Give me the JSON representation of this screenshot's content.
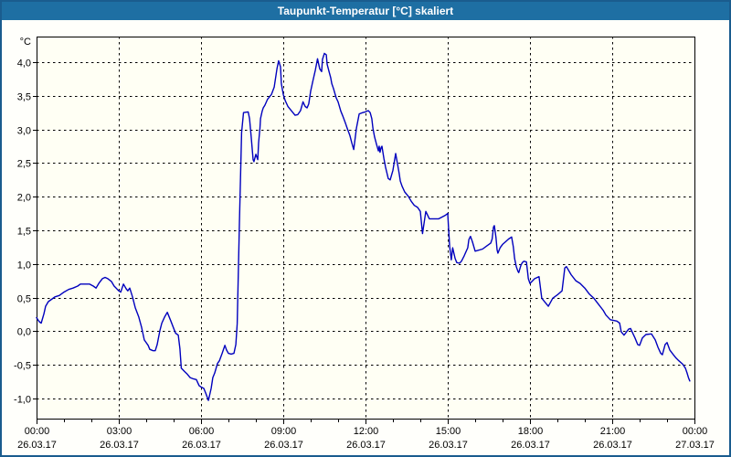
{
  "window": {
    "title": "Taupunkt-Temperatur [°C] skaliert",
    "colors": {
      "title_bar": "#1E6FA3",
      "title_text": "#FFFFFF",
      "border": "#1A5C8E",
      "client_bg": "#FFFFFB",
      "plot_bg": "#FFFFF4",
      "grid": "#000000",
      "axis_text": "#000000",
      "line": "#0000BE"
    }
  },
  "chart_data": {
    "type": "line",
    "title": "Taupunkt-Temperatur [°C] skaliert",
    "ylabel": "°C",
    "legend": "none",
    "grid": "dashed",
    "x_axis": {
      "range_hours": [
        0,
        24
      ],
      "minor_tick_hours": 1,
      "major_tick_hours": 3,
      "ticks": [
        {
          "hour": 0,
          "time": "00:00",
          "date": "26.03.17"
        },
        {
          "hour": 3,
          "time": "03:00",
          "date": "26.03.17"
        },
        {
          "hour": 6,
          "time": "06:00",
          "date": "26.03.17"
        },
        {
          "hour": 9,
          "time": "09:00",
          "date": "26.03.17"
        },
        {
          "hour": 12,
          "time": "12:00",
          "date": "26.03.17"
        },
        {
          "hour": 15,
          "time": "15:00",
          "date": "26.03.17"
        },
        {
          "hour": 18,
          "time": "18:00",
          "date": "26.03.17"
        },
        {
          "hour": 21,
          "time": "21:00",
          "date": "26.03.17"
        },
        {
          "hour": 24,
          "time": "00:00",
          "date": "27.03.17"
        }
      ]
    },
    "y_axis": {
      "range": [
        -1.3,
        4.38
      ],
      "unit": "°C",
      "ticks": [
        {
          "value": 4.0,
          "label": "4,0"
        },
        {
          "value": 3.5,
          "label": "3,5"
        },
        {
          "value": 3.0,
          "label": "3,0"
        },
        {
          "value": 2.5,
          "label": "2,5"
        },
        {
          "value": 2.0,
          "label": "2,0"
        },
        {
          "value": 1.5,
          "label": "1,5"
        },
        {
          "value": 1.0,
          "label": "1,0"
        },
        {
          "value": 0.5,
          "label": "0,5"
        },
        {
          "value": 0.0,
          "label": "0,0"
        },
        {
          "value": -0.5,
          "label": "-0,5"
        },
        {
          "value": -1.0,
          "label": "-1,0"
        }
      ]
    },
    "series": [
      {
        "name": "Taupunkt-Temperatur",
        "color": "#0000BE",
        "points": [
          [
            0.0,
            0.2
          ],
          [
            0.1,
            0.14
          ],
          [
            0.17,
            0.12
          ],
          [
            0.27,
            0.26
          ],
          [
            0.33,
            0.37
          ],
          [
            0.43,
            0.44
          ],
          [
            0.57,
            0.48
          ],
          [
            0.67,
            0.51
          ],
          [
            0.83,
            0.53
          ],
          [
            1.0,
            0.58
          ],
          [
            1.17,
            0.62
          ],
          [
            1.33,
            0.64
          ],
          [
            1.5,
            0.67
          ],
          [
            1.6,
            0.7
          ],
          [
            1.93,
            0.7
          ],
          [
            2.07,
            0.67
          ],
          [
            2.17,
            0.64
          ],
          [
            2.27,
            0.71
          ],
          [
            2.4,
            0.78
          ],
          [
            2.5,
            0.8
          ],
          [
            2.6,
            0.78
          ],
          [
            2.73,
            0.74
          ],
          [
            2.83,
            0.67
          ],
          [
            3.0,
            0.6
          ],
          [
            3.07,
            0.58
          ],
          [
            3.17,
            0.7
          ],
          [
            3.27,
            0.63
          ],
          [
            3.33,
            0.6
          ],
          [
            3.4,
            0.64
          ],
          [
            3.5,
            0.51
          ],
          [
            3.6,
            0.35
          ],
          [
            3.73,
            0.21
          ],
          [
            3.83,
            0.06
          ],
          [
            3.93,
            -0.13
          ],
          [
            4.07,
            -0.21
          ],
          [
            4.13,
            -0.27
          ],
          [
            4.25,
            -0.29
          ],
          [
            4.33,
            -0.29
          ],
          [
            4.4,
            -0.2
          ],
          [
            4.5,
            0.01
          ],
          [
            4.57,
            0.12
          ],
          [
            4.67,
            0.21
          ],
          [
            4.77,
            0.28
          ],
          [
            4.9,
            0.15
          ],
          [
            5.07,
            -0.03
          ],
          [
            5.17,
            -0.06
          ],
          [
            5.23,
            -0.26
          ],
          [
            5.28,
            -0.55
          ],
          [
            5.4,
            -0.6
          ],
          [
            5.5,
            -0.64
          ],
          [
            5.6,
            -0.69
          ],
          [
            5.73,
            -0.71
          ],
          [
            5.83,
            -0.72
          ],
          [
            5.93,
            -0.81
          ],
          [
            6.0,
            -0.83
          ],
          [
            6.1,
            -0.85
          ],
          [
            6.17,
            -0.92
          ],
          [
            6.27,
            -1.03
          ],
          [
            6.37,
            -0.85
          ],
          [
            6.43,
            -0.69
          ],
          [
            6.5,
            -0.62
          ],
          [
            6.6,
            -0.48
          ],
          [
            6.67,
            -0.44
          ],
          [
            6.77,
            -0.33
          ],
          [
            6.87,
            -0.21
          ],
          [
            6.93,
            -0.28
          ],
          [
            7.0,
            -0.33
          ],
          [
            7.1,
            -0.34
          ],
          [
            7.2,
            -0.33
          ],
          [
            7.27,
            -0.2
          ],
          [
            7.32,
            0.11
          ],
          [
            7.4,
            1.6
          ],
          [
            7.48,
            2.95
          ],
          [
            7.55,
            3.25
          ],
          [
            7.72,
            3.26
          ],
          [
            7.77,
            3.16
          ],
          [
            7.83,
            2.89
          ],
          [
            7.9,
            2.55
          ],
          [
            7.93,
            2.52
          ],
          [
            8.0,
            2.63
          ],
          [
            8.07,
            2.55
          ],
          [
            8.1,
            2.8
          ],
          [
            8.15,
            3.02
          ],
          [
            8.17,
            3.16
          ],
          [
            8.23,
            3.27
          ],
          [
            8.27,
            3.32
          ],
          [
            8.33,
            3.36
          ],
          [
            8.43,
            3.45
          ],
          [
            8.57,
            3.52
          ],
          [
            8.67,
            3.63
          ],
          [
            8.77,
            3.9
          ],
          [
            8.83,
            4.02
          ],
          [
            8.9,
            3.93
          ],
          [
            8.93,
            3.68
          ],
          [
            9.0,
            3.52
          ],
          [
            9.07,
            3.43
          ],
          [
            9.17,
            3.34
          ],
          [
            9.27,
            3.29
          ],
          [
            9.43,
            3.21
          ],
          [
            9.53,
            3.22
          ],
          [
            9.63,
            3.28
          ],
          [
            9.72,
            3.41
          ],
          [
            9.8,
            3.34
          ],
          [
            9.87,
            3.32
          ],
          [
            9.93,
            3.38
          ],
          [
            10.0,
            3.57
          ],
          [
            10.08,
            3.72
          ],
          [
            10.17,
            3.88
          ],
          [
            10.25,
            4.05
          ],
          [
            10.33,
            3.9
          ],
          [
            10.4,
            3.86
          ],
          [
            10.43,
            4.04
          ],
          [
            10.5,
            4.13
          ],
          [
            10.57,
            4.11
          ],
          [
            10.6,
            3.97
          ],
          [
            10.67,
            3.86
          ],
          [
            10.73,
            3.77
          ],
          [
            10.77,
            3.68
          ],
          [
            10.83,
            3.61
          ],
          [
            10.93,
            3.47
          ],
          [
            11.0,
            3.41
          ],
          [
            11.1,
            3.27
          ],
          [
            11.17,
            3.2
          ],
          [
            11.27,
            3.09
          ],
          [
            11.33,
            3.02
          ],
          [
            11.43,
            2.91
          ],
          [
            11.5,
            2.8
          ],
          [
            11.57,
            2.7
          ],
          [
            11.67,
            3.02
          ],
          [
            11.77,
            3.23
          ],
          [
            11.9,
            3.25
          ],
          [
            12.0,
            3.26
          ],
          [
            12.1,
            3.28
          ],
          [
            12.17,
            3.25
          ],
          [
            12.23,
            3.16
          ],
          [
            12.27,
            3.02
          ],
          [
            12.33,
            2.89
          ],
          [
            12.4,
            2.78
          ],
          [
            12.47,
            2.68
          ],
          [
            12.5,
            2.75
          ],
          [
            12.53,
            2.66
          ],
          [
            12.57,
            2.73
          ],
          [
            12.6,
            2.75
          ],
          [
            12.67,
            2.57
          ],
          [
            12.73,
            2.44
          ],
          [
            12.83,
            2.27
          ],
          [
            12.9,
            2.25
          ],
          [
            13.0,
            2.39
          ],
          [
            13.1,
            2.64
          ],
          [
            13.17,
            2.48
          ],
          [
            13.23,
            2.34
          ],
          [
            13.27,
            2.23
          ],
          [
            13.33,
            2.16
          ],
          [
            13.43,
            2.07
          ],
          [
            13.57,
            2.0
          ],
          [
            13.67,
            1.93
          ],
          [
            13.78,
            1.87
          ],
          [
            13.9,
            1.84
          ],
          [
            14.0,
            1.78
          ],
          [
            14.08,
            1.45
          ],
          [
            14.2,
            1.78
          ],
          [
            14.33,
            1.67
          ],
          [
            14.67,
            1.67
          ],
          [
            14.9,
            1.72
          ],
          [
            15.0,
            1.75
          ],
          [
            15.03,
            1.53
          ],
          [
            15.07,
            1.26
          ],
          [
            15.13,
            1.06
          ],
          [
            15.18,
            1.24
          ],
          [
            15.27,
            1.08
          ],
          [
            15.33,
            1.02
          ],
          [
            15.43,
            1.01
          ],
          [
            15.5,
            1.04
          ],
          [
            15.6,
            1.12
          ],
          [
            15.73,
            1.24
          ],
          [
            15.77,
            1.36
          ],
          [
            15.83,
            1.41
          ],
          [
            15.9,
            1.33
          ],
          [
            16.0,
            1.19
          ],
          [
            16.27,
            1.22
          ],
          [
            16.43,
            1.27
          ],
          [
            16.57,
            1.31
          ],
          [
            16.62,
            1.37
          ],
          [
            16.67,
            1.55
          ],
          [
            16.7,
            1.57
          ],
          [
            16.76,
            1.39
          ],
          [
            16.8,
            1.21
          ],
          [
            16.83,
            1.16
          ],
          [
            16.91,
            1.24
          ],
          [
            17.0,
            1.29
          ],
          [
            17.11,
            1.33
          ],
          [
            17.22,
            1.37
          ],
          [
            17.33,
            1.4
          ],
          [
            17.39,
            1.26
          ],
          [
            17.44,
            1.08
          ],
          [
            17.5,
            0.96
          ],
          [
            17.56,
            0.89
          ],
          [
            17.59,
            0.87
          ],
          [
            17.67,
            0.98
          ],
          [
            17.72,
            1.02
          ],
          [
            17.78,
            1.04
          ],
          [
            17.87,
            1.03
          ],
          [
            17.91,
            0.89
          ],
          [
            17.94,
            0.78
          ],
          [
            18.0,
            0.71
          ],
          [
            18.17,
            0.78
          ],
          [
            18.27,
            0.8
          ],
          [
            18.33,
            0.81
          ],
          [
            18.43,
            0.49
          ],
          [
            18.57,
            0.42
          ],
          [
            18.67,
            0.37
          ],
          [
            18.83,
            0.49
          ],
          [
            19.0,
            0.54
          ],
          [
            19.17,
            0.6
          ],
          [
            19.27,
            0.94
          ],
          [
            19.33,
            0.96
          ],
          [
            19.5,
            0.84
          ],
          [
            19.67,
            0.75
          ],
          [
            19.83,
            0.71
          ],
          [
            20.0,
            0.64
          ],
          [
            20.17,
            0.55
          ],
          [
            20.33,
            0.49
          ],
          [
            20.5,
            0.4
          ],
          [
            20.67,
            0.31
          ],
          [
            20.77,
            0.24
          ],
          [
            20.93,
            0.17
          ],
          [
            21.17,
            0.15
          ],
          [
            21.27,
            0.12
          ],
          [
            21.33,
            -0.01
          ],
          [
            21.43,
            -0.06
          ],
          [
            21.6,
            0.03
          ],
          [
            21.67,
            0.04
          ],
          [
            21.83,
            -0.1
          ],
          [
            21.93,
            -0.2
          ],
          [
            22.0,
            -0.21
          ],
          [
            22.1,
            -0.1
          ],
          [
            22.23,
            -0.05
          ],
          [
            22.43,
            -0.04
          ],
          [
            22.57,
            -0.13
          ],
          [
            22.67,
            -0.24
          ],
          [
            22.77,
            -0.33
          ],
          [
            22.83,
            -0.35
          ],
          [
            22.93,
            -0.2
          ],
          [
            23.0,
            -0.17
          ],
          [
            23.1,
            -0.28
          ],
          [
            23.23,
            -0.35
          ],
          [
            23.33,
            -0.4
          ],
          [
            23.43,
            -0.44
          ],
          [
            23.57,
            -0.49
          ],
          [
            23.67,
            -0.55
          ],
          [
            23.73,
            -0.62
          ],
          [
            23.78,
            -0.69
          ],
          [
            23.83,
            -0.74
          ]
        ]
      }
    ]
  }
}
